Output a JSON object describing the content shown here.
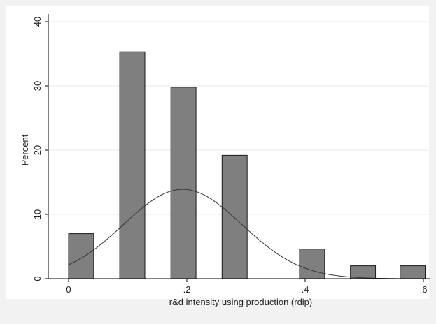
{
  "chart_data": {
    "type": "bar",
    "subtype": "histogram-with-normal-density",
    "xlabel": "r&d intensity using production (rdip)",
    "ylabel": "Percent",
    "xlim": [
      0,
      0.6
    ],
    "ylim": [
      0,
      40
    ],
    "x_ticks": [
      {
        "value": 0,
        "label": "0"
      },
      {
        "value": 0.2,
        "label": ".2"
      },
      {
        "value": 0.4,
        "label": ".4"
      },
      {
        "value": 0.6,
        "label": ".6"
      }
    ],
    "y_ticks": [
      {
        "value": 0,
        "label": "0"
      },
      {
        "value": 10,
        "label": "10"
      },
      {
        "value": 20,
        "label": "20"
      },
      {
        "value": 30,
        "label": "30"
      },
      {
        "value": 40,
        "label": "40"
      }
    ],
    "grid": true,
    "bars": [
      {
        "x0": 0.0,
        "x1": 0.0425,
        "value": 7.0
      },
      {
        "x0": 0.0865,
        "x1": 0.129,
        "value": 35.3
      },
      {
        "x0": 0.173,
        "x1": 0.2155,
        "value": 29.8
      },
      {
        "x0": 0.2595,
        "x1": 0.302,
        "value": 19.2
      },
      {
        "x0": 0.3905,
        "x1": 0.433,
        "value": 4.6
      },
      {
        "x0": 0.4765,
        "x1": 0.519,
        "value": 2.0
      },
      {
        "x0": 0.5605,
        "x1": 0.603,
        "value": 2.0
      }
    ],
    "density_curve": {
      "distribution": "normal",
      "mean": 0.193,
      "sd": 0.1,
      "peak_percent": 13.9,
      "x_range": [
        0.0,
        0.57
      ]
    },
    "colors": {
      "bar_fill": "#7f7f7f",
      "bar_edge": "#1a1a1a",
      "plot_background": "#ffffff",
      "outer_background": "#f2f2f2",
      "gridline": "#e8e8e8",
      "curve": "#333333"
    }
  }
}
